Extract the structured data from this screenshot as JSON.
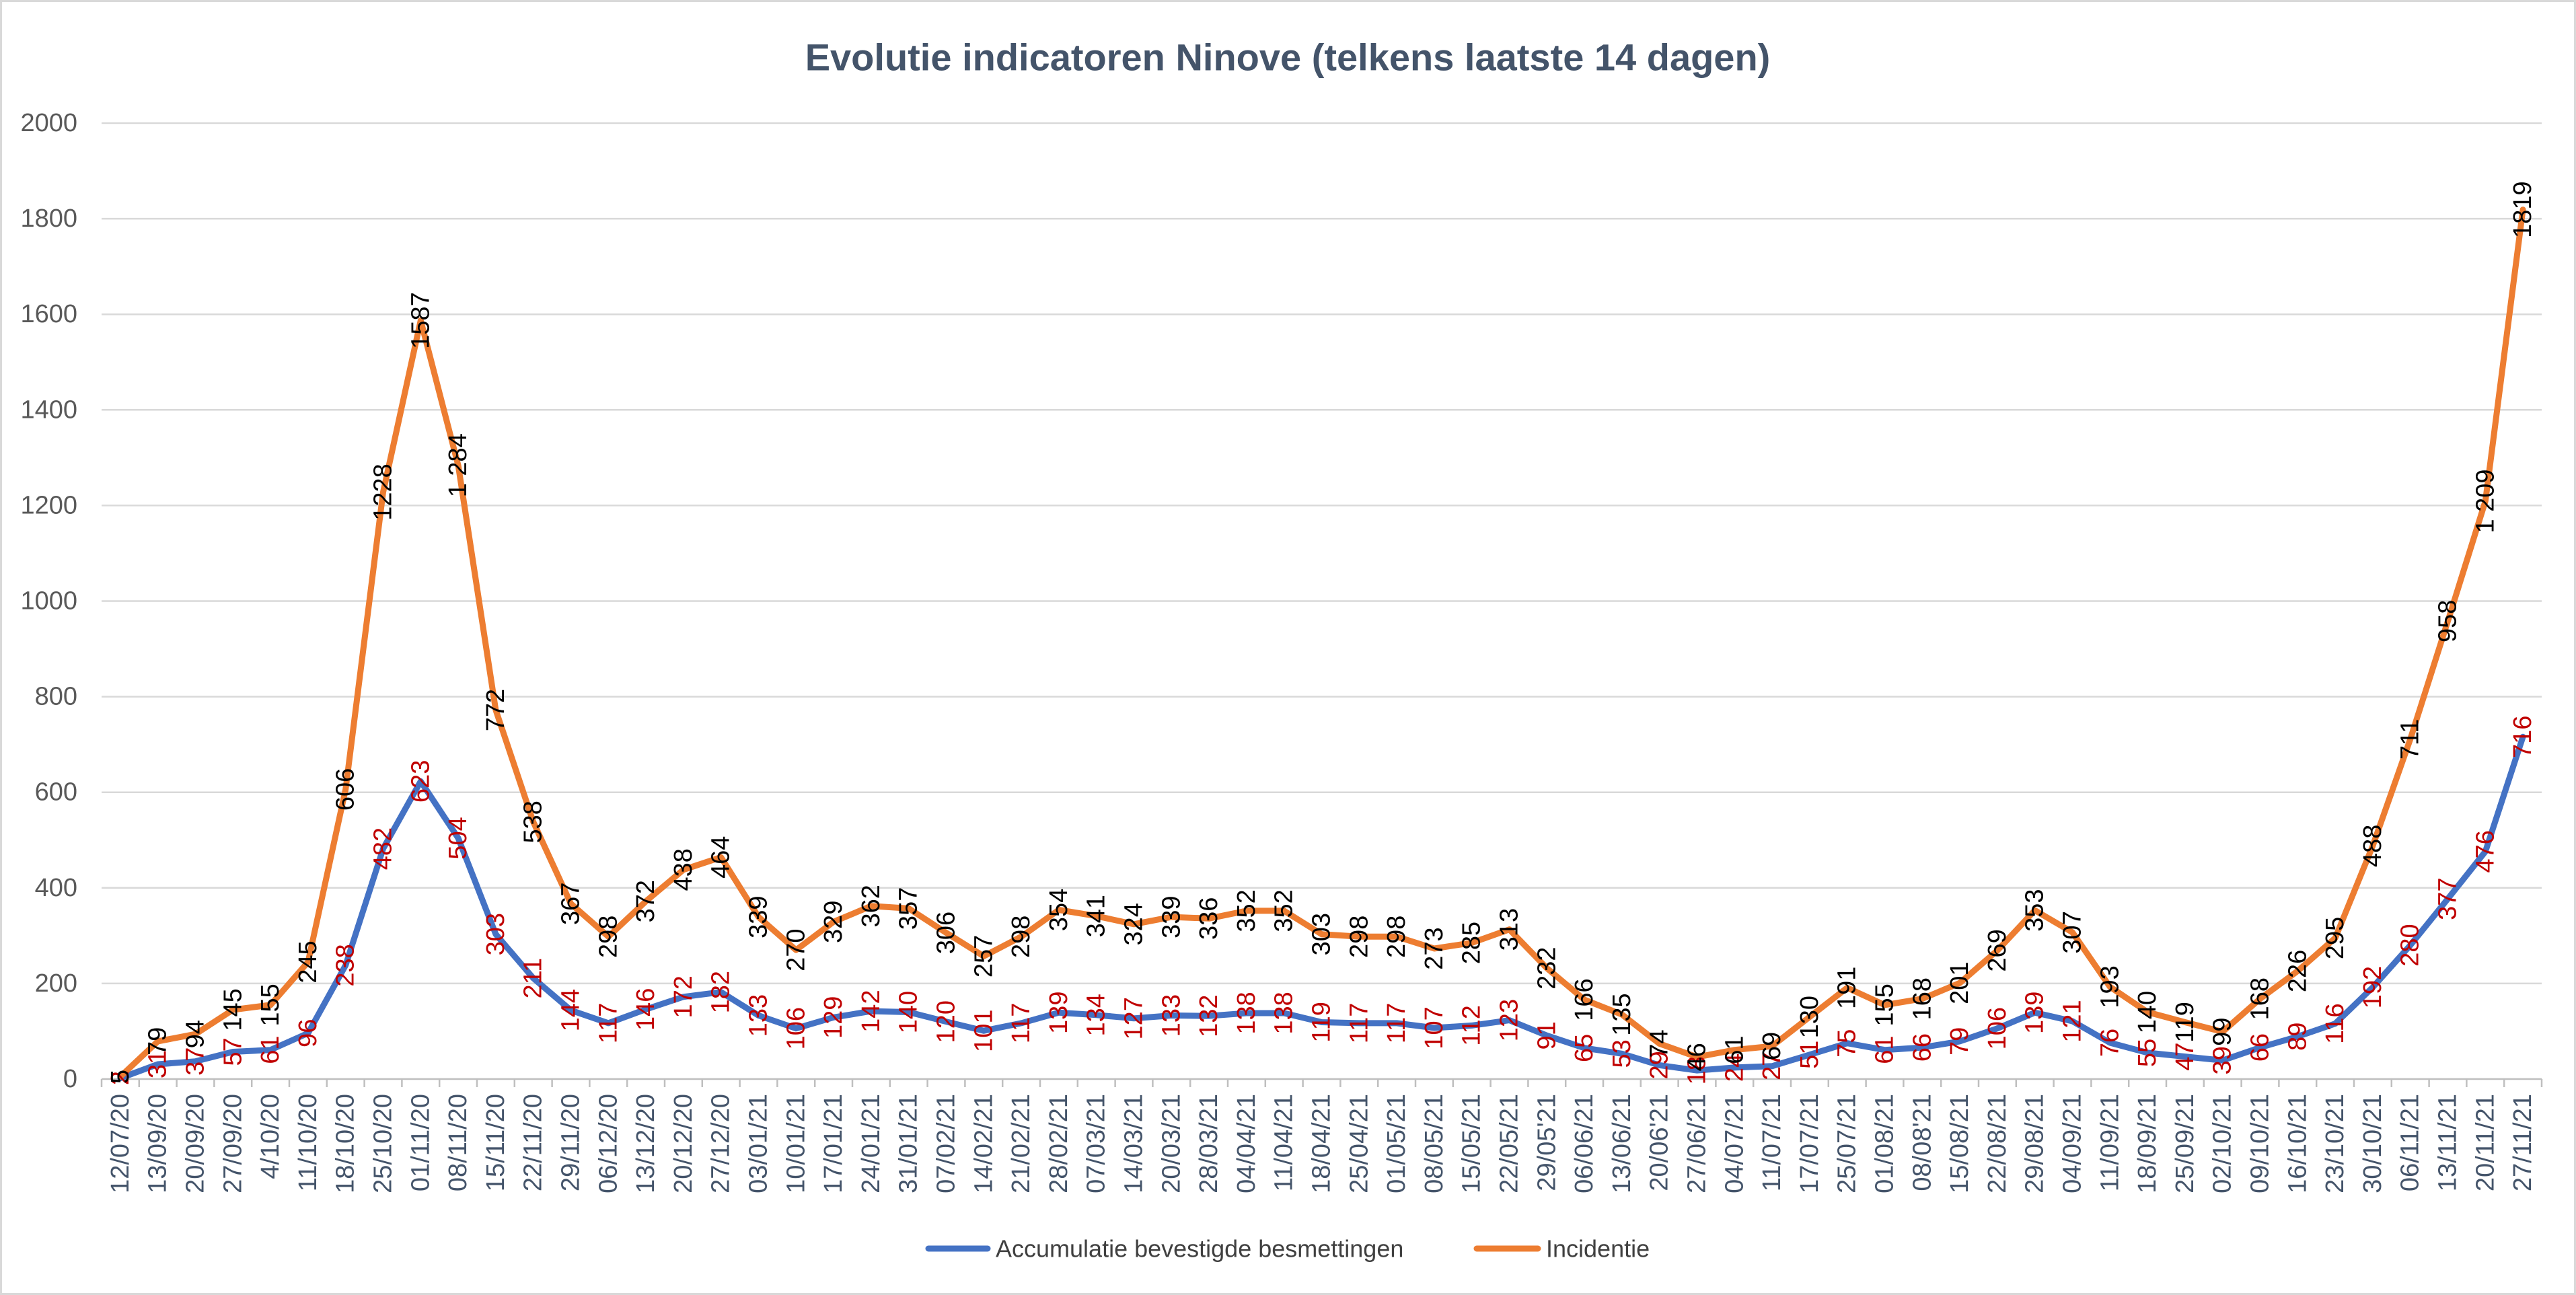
{
  "chart_data": {
    "type": "line",
    "title": "Evolutie indicatoren Ninove (telkens laatste 14 dagen)",
    "xlabel": "",
    "ylabel": "",
    "ylim": [
      0,
      2000
    ],
    "yticks": [
      0,
      200,
      400,
      600,
      800,
      1000,
      1200,
      1400,
      1600,
      1800,
      2000
    ],
    "grid": true,
    "legend_position": "bottom",
    "categories": [
      "12/07/20",
      "13/09/20",
      "20/09/20",
      "27/09/20",
      "4/10/20",
      "11/10/20",
      "18/10/20",
      "25/10/20",
      "01/11/20",
      "08/11/20",
      "15/11/20",
      "22/11/20",
      "29/11/20",
      "06/12/20",
      "13/12/20",
      "20/12/20",
      "27/12/20",
      "03/01/21",
      "10/01/21",
      "17/01/21",
      "24/01/21",
      "31/01/21",
      "07/02/21",
      "14/02/21",
      "21/02/21",
      "28/02/21",
      "07/03/21",
      "14/03/21",
      "20/03/21",
      "28/03/21",
      "04/04/21",
      "11/04/21",
      "18/04/21",
      "25/04/21",
      "01/05/21",
      "08/05/21",
      "15/05/21",
      "22/05/21",
      "29/05'21",
      "06/06/21",
      "13/06/21",
      "20/06'21",
      "27/06/21",
      "04/07/21",
      "11/07/21",
      "17/07/21",
      "25/07/21",
      "01/08/21",
      "08/08'21",
      "15/08/21",
      "22/08/21",
      "29/08/21",
      "04/09/21",
      "11/09/21",
      "18/09/21",
      "25/09/21",
      "02/10/21",
      "09/10/21",
      "16/10/21",
      "23/10/21",
      "30/10/21",
      "06/11/21",
      "13/11/21",
      "20/11/21",
      "27/11/21"
    ],
    "series": [
      {
        "name": "Accumulatie bevestigde besmettingen",
        "color": "#4472C4",
        "label_color": "#C00000",
        "values": [
          2,
          31,
          37,
          57,
          61,
          96,
          238,
          482,
          623,
          504,
          303,
          211,
          144,
          117,
          146,
          172,
          182,
          133,
          106,
          129,
          142,
          140,
          120,
          101,
          117,
          139,
          134,
          127,
          133,
          132,
          138,
          138,
          119,
          117,
          117,
          107,
          112,
          123,
          91,
          65,
          53,
          29,
          18,
          24,
          27,
          51,
          75,
          61,
          66,
          79,
          106,
          139,
          121,
          76,
          55,
          47,
          39,
          66,
          89,
          116,
          192,
          280,
          377,
          476,
          716
        ]
      },
      {
        "name": "Incidentie",
        "color": "#ED7D31",
        "label_color": "#000000",
        "values": [
          5,
          79,
          94,
          145,
          155,
          245,
          606,
          1228,
          1587,
          1284,
          772,
          538,
          367,
          298,
          372,
          438,
          464,
          339,
          270,
          329,
          362,
          357,
          306,
          257,
          298,
          354,
          341,
          324,
          339,
          336,
          352,
          352,
          303,
          298,
          298,
          273,
          285,
          313,
          232,
          166,
          135,
          74,
          46,
          61,
          69,
          130,
          191,
          155,
          168,
          201,
          269,
          353,
          307,
          193,
          140,
          119,
          99,
          168,
          226,
          295,
          488,
          711,
          958,
          1209,
          1819
        ],
        "labels": [
          "5",
          "79",
          "94",
          "145",
          "155",
          "245",
          "606",
          "1228",
          "1587",
          "1 284",
          "772",
          "538",
          "367",
          "298",
          "372",
          "438",
          "464",
          "339",
          "270",
          "329",
          "362",
          "357",
          "306",
          "257",
          "298",
          "354",
          "341",
          "324",
          "339",
          "336",
          "352",
          "352",
          "303",
          "298",
          "298",
          "273",
          "285",
          "313",
          "232",
          "166",
          "135",
          "74",
          "46",
          "61",
          "69",
          "130",
          "191",
          "155",
          "168",
          "201",
          "269",
          "353",
          "307",
          "193",
          "140",
          "119",
          "99",
          "168",
          "226",
          "295",
          "488",
          "711",
          "958",
          "1 209",
          "1819"
        ]
      }
    ]
  }
}
